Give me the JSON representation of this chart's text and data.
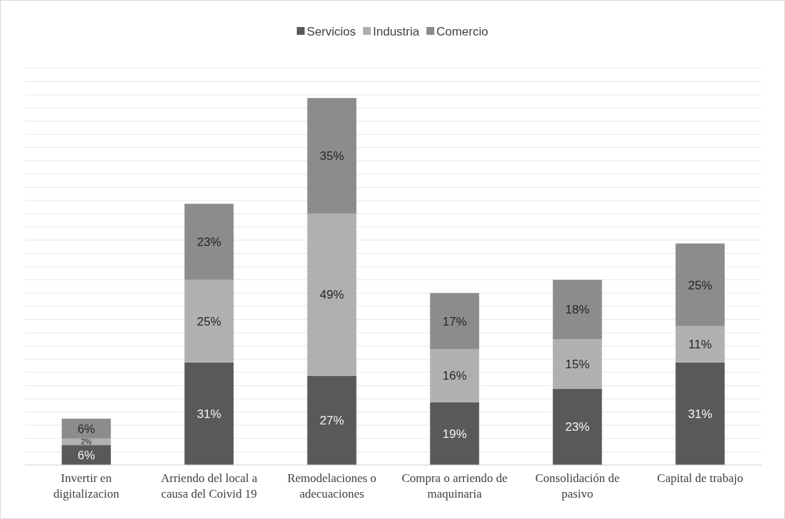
{
  "chart_data": {
    "type": "bar",
    "stacked": true,
    "data_labels": true,
    "grid": "y",
    "legend": "top",
    "tick_labels": "x",
    "categories": [
      "Invertir en digitalizacion",
      "Arriendo del local a causa del Coivid 19",
      "Remodelaciones o adecuaciones",
      "Compra o arriendo de maquinaria",
      "Consolidación de pasivo",
      "Capital de trabajo"
    ],
    "ylim": [
      0,
      120
    ],
    "yticks": [
      {
        "value": 0,
        "label": null
      },
      {
        "value": 4,
        "label": null
      },
      {
        "value": 8,
        "label": null
      },
      {
        "value": 12,
        "label": null
      },
      {
        "value": 16,
        "label": null
      },
      {
        "value": 20,
        "label": null
      },
      {
        "value": 24,
        "label": null
      },
      {
        "value": 28,
        "label": null
      },
      {
        "value": 32,
        "label": null
      },
      {
        "value": 36,
        "label": null
      },
      {
        "value": 40,
        "label": null
      },
      {
        "value": 44,
        "label": null
      },
      {
        "value": 48,
        "label": null
      },
      {
        "value": 52,
        "label": null
      },
      {
        "value": 56,
        "label": null
      },
      {
        "value": 60,
        "label": null
      },
      {
        "value": 64,
        "label": null
      },
      {
        "value": 68,
        "label": null
      },
      {
        "value": 72,
        "label": null
      },
      {
        "value": 76,
        "label": null
      },
      {
        "value": 80,
        "label": null
      },
      {
        "value": 84,
        "label": null
      },
      {
        "value": 88,
        "label": null
      },
      {
        "value": 92,
        "label": null
      },
      {
        "value": 96,
        "label": null
      },
      {
        "value": 100,
        "label": null
      },
      {
        "value": 104,
        "label": null
      },
      {
        "value": 108,
        "label": null
      },
      {
        "value": 112,
        "label": null
      },
      {
        "value": 116,
        "label": null
      },
      {
        "value": 120,
        "label": null
      }
    ],
    "series": [
      {
        "name": "Servicios",
        "color": "#595959",
        "values": [
          6,
          31,
          27,
          19,
          23,
          31
        ],
        "value_labels": [
          "6%",
          "31%",
          "27%",
          "19%",
          "23%",
          "31%"
        ]
      },
      {
        "name": "Industria",
        "color": "#b0b0b0",
        "values": [
          2,
          25,
          49,
          16,
          15,
          11
        ],
        "value_labels": [
          "2%",
          "25%",
          "49%",
          "16%",
          "15%",
          "11%"
        ]
      },
      {
        "name": "Comercio",
        "color": "#8c8c8c",
        "values": [
          6,
          23,
          35,
          17,
          18,
          25
        ],
        "value_labels": [
          "6%",
          "23%",
          "35%",
          "17%",
          "18%",
          "25%"
        ]
      }
    ]
  }
}
